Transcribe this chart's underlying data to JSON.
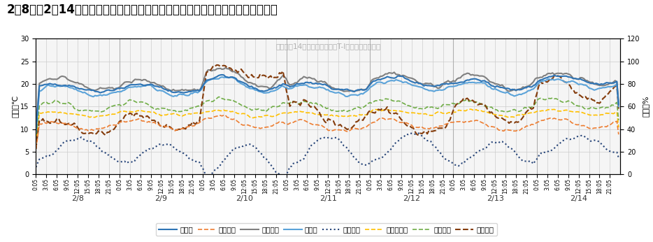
{
  "title": "2月8日～2月14日における竹山団地内の断炱改修済み住戸における温湿度の推移",
  "inner_title": "２／８～14における竹山団地T-I住戸の温湿度推移",
  "left_label": "温度　℃",
  "right_label": "湿度　%",
  "ylim_left": [
    0,
    30
  ],
  "ylim_right": [
    0,
    120
  ],
  "yticks_left": [
    0,
    5,
    10,
    15,
    20,
    25,
    30
  ],
  "yticks_right": [
    0,
    20,
    40,
    60,
    80,
    100,
    120
  ],
  "days": [
    "2/8",
    "2/9",
    "2/10",
    "2/11",
    "2/12",
    "2/13",
    "2/14"
  ],
  "n_points_per_day": 48,
  "series": {
    "居間温": {
      "color": "#2e74b5",
      "linestyle": "-",
      "linewidth": 1.5,
      "zorder": 5
    },
    "居間湿度": {
      "color": "#ed7d31",
      "linestyle": "--",
      "linewidth": 1.2,
      "zorder": 4
    },
    "北洋室温": {
      "color": "#808080",
      "linestyle": "-",
      "linewidth": 1.5,
      "zorder": 3
    },
    "玄関温": {
      "color": "#5ba3d9",
      "linestyle": "-",
      "linewidth": 1.5,
      "zorder": 4
    },
    "横浜気温": {
      "color": "#264478",
      "linestyle": ":",
      "linewidth": 1.5,
      "zorder": 2
    },
    "北洋室湿度": {
      "color": "#ffc000",
      "linestyle": "--",
      "linewidth": 1.2,
      "zorder": 3
    },
    "玄関湿度": {
      "color": "#70ad47",
      "linestyle": "--",
      "linewidth": 1.2,
      "zorder": 3
    },
    "横浜湿度": {
      "color": "#843c0c",
      "linestyle": "--",
      "linewidth": 1.5,
      "zorder": 3
    }
  },
  "legend_order": [
    "居間温",
    "居間湿度",
    "北洋室温",
    "玄関温",
    "横浜気温",
    "北洋室湿度",
    "玄関湿度",
    "横浜湿度"
  ],
  "background_color": "#ffffff",
  "plot_bg_color": "#f5f5f5",
  "grid_color": "#cccccc",
  "title_fontsize": 12,
  "inner_title_color": "#b0b0b0",
  "tick_label_size": 5.5,
  "day_label_size": 8
}
